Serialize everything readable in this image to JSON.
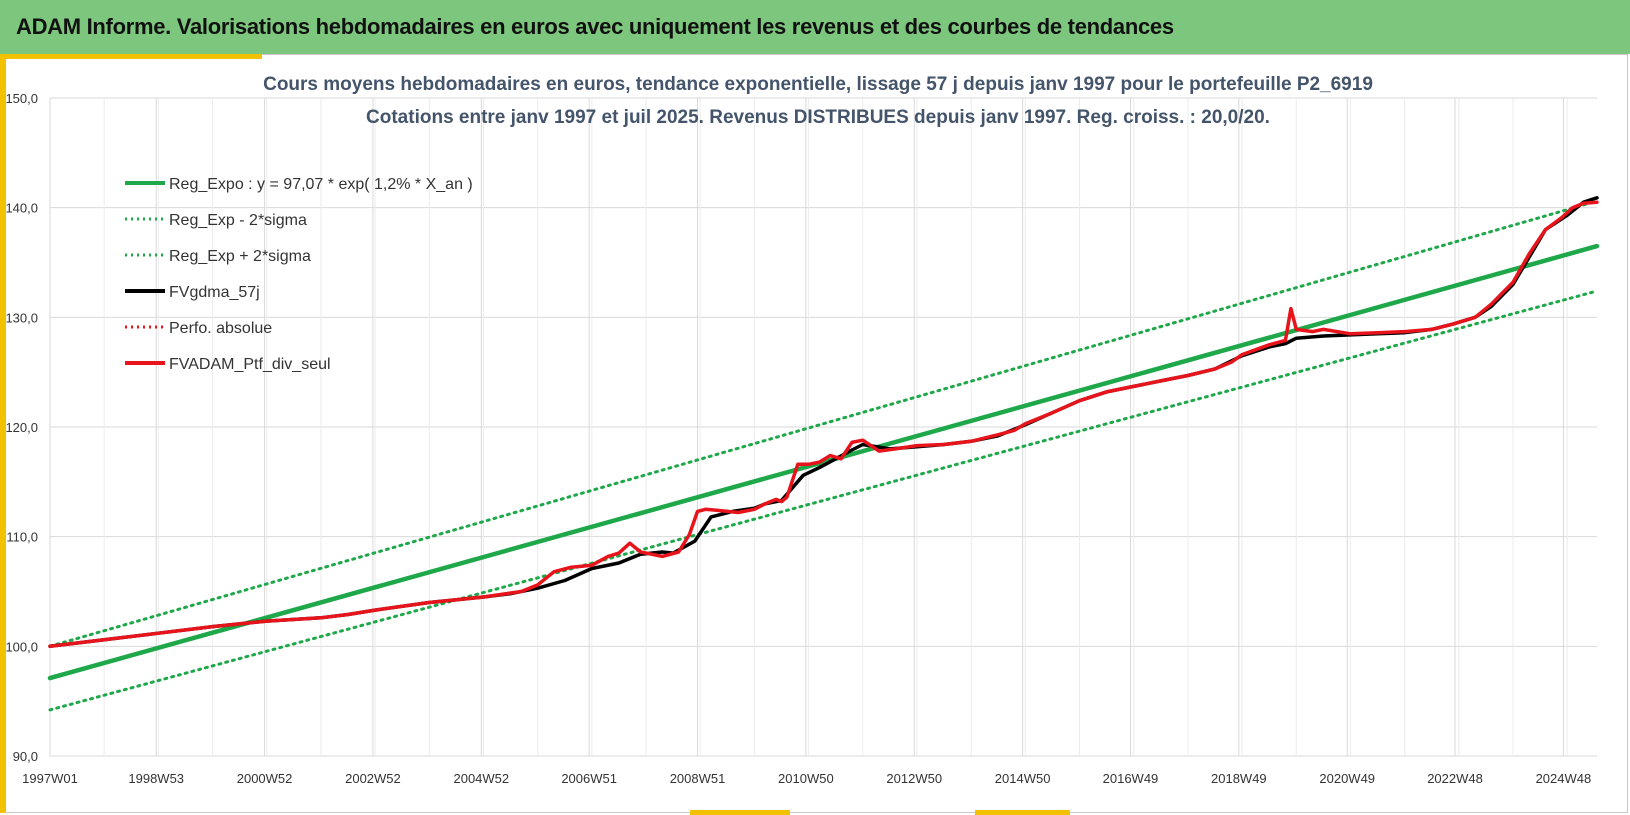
{
  "header": {
    "title": "ADAM Informe. Valorisations hebdomadaires en euros avec uniquement les revenus et des courbes de tendances"
  },
  "chart_data": {
    "type": "line",
    "title": "Cours moyens hebdomadaires  en euros, tendance exponentielle, lissage 57 j depuis janv 1997 pour le portefeuille P2_6919",
    "subtitle": "Cotations entre janv 1997 et juil 2025. Revenus DISTRIBUES depuis janv 1997. Reg. croiss. : 20,0/20.",
    "xlabel": "",
    "ylabel": "",
    "ylim": [
      90,
      150
    ],
    "xlim": [
      1997.0,
      2025.55
    ],
    "y_ticks": [
      "90,0",
      "100,0",
      "110,0",
      "120,0",
      "130,0",
      "140,0",
      "150,0"
    ],
    "x_tick_labels": [
      "1997W01",
      "1998W53",
      "2000W52",
      "2002W52",
      "2004W52",
      "2006W51",
      "2008W51",
      "2010W50",
      "2012W50",
      "2014W50",
      "2016W49",
      "2018W49",
      "2020W49",
      "2022W48",
      "2024W48"
    ],
    "x_tick_positions": [
      1997.0,
      1998.96,
      2000.96,
      2002.96,
      2004.96,
      2006.95,
      2008.95,
      2010.95,
      2012.95,
      2014.95,
      2016.94,
      2018.94,
      2020.94,
      2022.93,
      2024.93
    ],
    "grid": true,
    "legend_position": "top-left",
    "colors": {
      "reg": "#1ea84a",
      "fv": "#e8141c",
      "gdma": "#000000",
      "banner": "#7dc67d",
      "accent": "#f2c200",
      "title": "#44546a"
    },
    "legend": [
      {
        "label": "Reg_Expo : y = 97,07 * exp( 1,2% *  X_an )",
        "style": "solid",
        "color": "#1ea84a"
      },
      {
        "label": "Reg_Exp - 2*sigma",
        "style": "dotted",
        "color": "#1ea84a"
      },
      {
        "label": "Reg_Exp + 2*sigma",
        "style": "dotted",
        "color": "#1ea84a"
      },
      {
        "label": "FVgdma_57j",
        "style": "solid",
        "color": "#000000"
      },
      {
        "label": "Perfo. absolue",
        "style": "dotted",
        "color": "#e8141c"
      },
      {
        "label": "FVADAM_Ptf_div_seul",
        "style": "solid",
        "color": "#e8141c"
      }
    ],
    "series": [
      {
        "name": "Reg_Expo : y = 97,07 * exp( 1,2% *  X_an )",
        "x": [
          1997.0,
          2025.55
        ],
        "y": [
          97.1,
          136.5
        ]
      },
      {
        "name": "Reg_Exp - 2*sigma",
        "x": [
          1997.0,
          2025.55
        ],
        "y": [
          94.2,
          132.4
        ]
      },
      {
        "name": "Reg_Exp + 2*sigma",
        "x": [
          1997.0,
          2025.55
        ],
        "y": [
          100.0,
          140.6
        ]
      },
      {
        "name": "FVgdma_57j",
        "x": [
          1997.0,
          1998.0,
          1999.0,
          2000.0,
          2001.0,
          2002.0,
          2002.5,
          2003.0,
          2004.0,
          2005.0,
          2005.5,
          2006.0,
          2006.5,
          2007.0,
          2007.5,
          2007.9,
          2008.3,
          2008.5,
          2008.9,
          2009.2,
          2009.6,
          2010.0,
          2010.2,
          2010.5,
          2010.9,
          2011.2,
          2011.5,
          2011.8,
          2012.0,
          2012.5,
          2013.0,
          2013.5,
          2014.0,
          2014.5,
          2015.0,
          2015.5,
          2016.0,
          2016.5,
          2017.0,
          2017.5,
          2018.0,
          2018.5,
          2019.0,
          2019.5,
          2019.8,
          2020.0,
          2020.5,
          2021.0,
          2021.5,
          2022.0,
          2022.5,
          2022.9,
          2023.3,
          2023.6,
          2024.0,
          2024.3,
          2024.6,
          2025.0,
          2025.3,
          2025.55
        ],
        "y": [
          100.0,
          100.6,
          101.2,
          101.8,
          102.3,
          102.6,
          102.9,
          103.3,
          104.0,
          104.5,
          104.8,
          105.3,
          106.0,
          107.1,
          107.6,
          108.4,
          108.6,
          108.5,
          109.6,
          111.8,
          112.3,
          112.6,
          113.0,
          113.3,
          115.6,
          116.3,
          117.1,
          117.9,
          118.4,
          118.0,
          118.2,
          118.4,
          118.7,
          119.2,
          120.2,
          121.3,
          122.4,
          123.2,
          123.7,
          124.2,
          124.7,
          125.3,
          126.5,
          127.3,
          127.6,
          128.1,
          128.3,
          128.4,
          128.5,
          128.6,
          128.9,
          129.4,
          130.0,
          131.0,
          133.0,
          135.5,
          138.0,
          139.3,
          140.5,
          140.9
        ]
      },
      {
        "name": "FVADAM_Ptf_div_seul",
        "x": [
          1997.0,
          1998.0,
          1999.0,
          2000.0,
          2001.0,
          2002.0,
          2002.5,
          2003.0,
          2004.0,
          2005.0,
          2005.7,
          2006.0,
          2006.3,
          2006.6,
          2007.0,
          2007.3,
          2007.5,
          2007.7,
          2007.9,
          2008.1,
          2008.3,
          2008.6,
          2008.8,
          2008.95,
          2009.1,
          2009.3,
          2009.7,
          2010.0,
          2010.2,
          2010.4,
          2010.5,
          2010.6,
          2010.8,
          2011.0,
          2011.2,
          2011.4,
          2011.6,
          2011.8,
          2012.0,
          2012.3,
          2012.6,
          2013.0,
          2013.5,
          2014.0,
          2014.5,
          2014.8,
          2015.0,
          2015.5,
          2016.0,
          2016.5,
          2017.0,
          2017.5,
          2018.0,
          2018.5,
          2018.8,
          2019.0,
          2019.5,
          2019.8,
          2019.9,
          2020.0,
          2020.3,
          2020.5,
          2021.0,
          2021.5,
          2022.0,
          2022.5,
          2022.9,
          2023.3,
          2023.6,
          2024.0,
          2024.3,
          2024.6,
          2024.9,
          2025.1,
          2025.3,
          2025.55
        ],
        "y": [
          100.0,
          100.6,
          101.2,
          101.8,
          102.3,
          102.6,
          102.9,
          103.3,
          104.0,
          104.5,
          105.0,
          105.6,
          106.8,
          107.2,
          107.4,
          108.2,
          108.5,
          109.4,
          108.6,
          108.4,
          108.2,
          108.6,
          110.2,
          112.3,
          112.5,
          112.4,
          112.2,
          112.5,
          113.0,
          113.4,
          113.2,
          113.6,
          116.6,
          116.6,
          116.8,
          117.4,
          117.1,
          118.6,
          118.8,
          117.8,
          118.0,
          118.3,
          118.4,
          118.7,
          119.3,
          119.7,
          120.3,
          121.3,
          122.4,
          123.2,
          123.7,
          124.2,
          124.7,
          125.3,
          125.9,
          126.6,
          127.5,
          127.9,
          130.8,
          128.9,
          128.7,
          128.9,
          128.5,
          128.6,
          128.7,
          128.9,
          129.4,
          130.0,
          131.2,
          133.2,
          135.8,
          138.0,
          139.1,
          140.0,
          140.4,
          140.5
        ]
      }
    ]
  }
}
